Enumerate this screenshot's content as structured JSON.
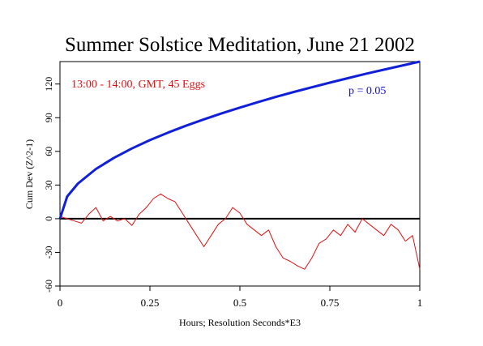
{
  "chart_data": {
    "type": "line",
    "title": "Summer Solstice Meditation, June 21 2002",
    "subtitle": "13:00 - 14:00, GMT, 45 Eggs",
    "xlabel": "Hours; Resolution Seconds*E3",
    "ylabel": "Cum Dev (Z^2-1)",
    "xlim": [
      0,
      1
    ],
    "ylim": [
      -60,
      140
    ],
    "x_ticks": [
      0,
      0.25,
      0.5,
      0.75,
      1
    ],
    "x_tick_labels": [
      "0",
      "0.25",
      "0.5",
      "0.75",
      "1"
    ],
    "y_ticks": [
      -60,
      -30,
      0,
      30,
      60,
      90,
      120
    ],
    "y_tick_labels": [
      "-60",
      "-30",
      "0",
      "30",
      "60",
      "90",
      "120"
    ],
    "grid": false,
    "legend": "none",
    "annotations": [
      {
        "text": "p = 0.05",
        "color": "#1010c8"
      }
    ],
    "series": [
      {
        "color": "#e01010",
        "x": [
          0,
          0.02,
          0.04,
          0.06,
          0.08,
          0.1,
          0.12,
          0.14,
          0.16,
          0.18,
          0.2,
          0.22,
          0.24,
          0.26,
          0.28,
          0.3,
          0.32,
          0.34,
          0.36,
          0.38,
          0.4,
          0.42,
          0.44,
          0.46,
          0.48,
          0.5,
          0.52,
          0.54,
          0.56,
          0.58,
          0.6,
          0.62,
          0.64,
          0.66,
          0.68,
          0.7,
          0.72,
          0.74,
          0.76,
          0.78,
          0.8,
          0.82,
          0.84,
          0.86,
          0.88,
          0.9,
          0.92,
          0.94,
          0.96,
          0.98,
          1
        ],
        "values": [
          2,
          0,
          -2,
          -4,
          4,
          10,
          -2,
          2,
          -2,
          0,
          -6,
          4,
          10,
          18,
          22,
          18,
          15,
          5,
          -5,
          -15,
          -25,
          -15,
          -5,
          0,
          10,
          5,
          -5,
          -10,
          -15,
          -10,
          -25,
          -35,
          -38,
          -42,
          -45,
          -35,
          -22,
          -18,
          -10,
          -15,
          -5,
          -12,
          0,
          -5,
          -10,
          -15,
          -5,
          -10,
          -20,
          -15,
          -45
        ]
      },
      {
        "color": "#1020d8",
        "x": [
          0,
          0.02,
          0.05,
          0.1,
          0.15,
          0.2,
          0.25,
          0.3,
          0.35,
          0.4,
          0.45,
          0.5,
          0.55,
          0.6,
          0.65,
          0.7,
          0.75,
          0.8,
          0.85,
          0.9,
          0.95,
          1
        ],
        "values": [
          0,
          19.8,
          31.3,
          44.3,
          54.2,
          62.6,
          70.0,
          76.7,
          82.8,
          88.5,
          93.9,
          99.0,
          103.8,
          108.5,
          112.9,
          117.1,
          121.2,
          125.2,
          129.1,
          132.8,
          136.4,
          140.0
        ]
      }
    ]
  }
}
